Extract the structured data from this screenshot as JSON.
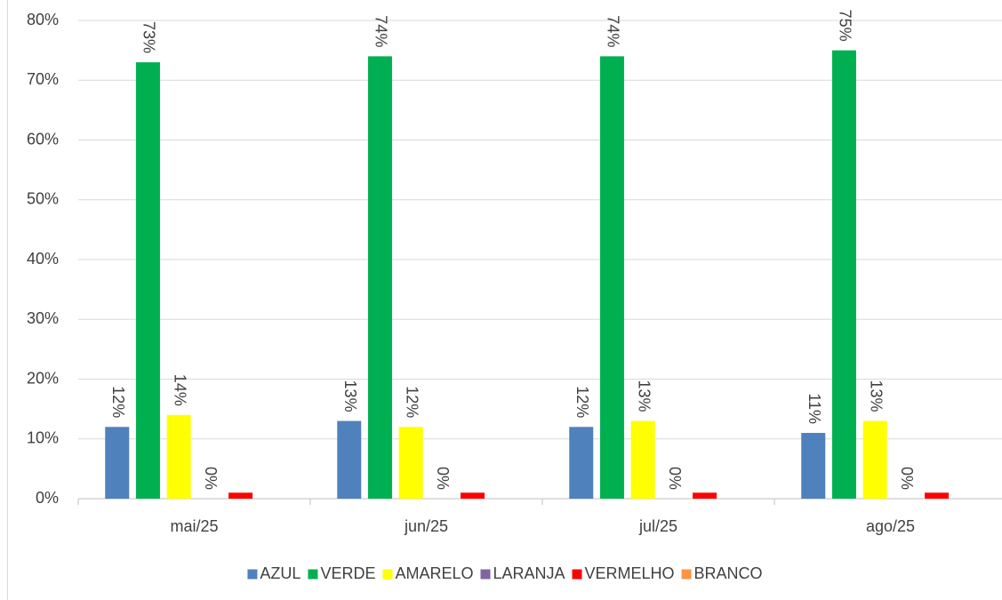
{
  "chart_data": {
    "type": "bar",
    "categories": [
      "mai/25",
      "jun/25",
      "jul/25",
      "ago/25"
    ],
    "series": [
      {
        "name": "AZUL",
        "color": "#4f81bd",
        "values": [
          12,
          13,
          12,
          11
        ],
        "value_labels": [
          "12%",
          "13%",
          "12%",
          "11%"
        ]
      },
      {
        "name": "VERDE",
        "color": "#00b050",
        "values": [
          73,
          74,
          74,
          75
        ],
        "value_labels": [
          "73%",
          "74%",
          "74%",
          "75%"
        ]
      },
      {
        "name": "AMARELO",
        "color": "#ffff00",
        "values": [
          14,
          12,
          13,
          13
        ],
        "value_labels": [
          "14%",
          "12%",
          "13%",
          "13%"
        ]
      },
      {
        "name": "LARANJA",
        "color": "#8064a2",
        "values": [
          0,
          0,
          0,
          0
        ],
        "value_labels": [
          "0%",
          "0%",
          "0%",
          "0%"
        ]
      },
      {
        "name": "VERMELHO",
        "color": "#ff0000",
        "values": [
          1,
          1,
          1,
          1
        ]
      },
      {
        "name": "BRANCO",
        "color": "#f79646",
        "values": [
          0,
          0,
          0,
          0
        ]
      }
    ],
    "ylim": [
      0,
      80
    ],
    "yticks": [
      {
        "value": 0,
        "label": "0%"
      },
      {
        "value": 10,
        "label": "10%"
      },
      {
        "value": 20,
        "label": "20%"
      },
      {
        "value": 30,
        "label": "30%"
      },
      {
        "value": 40,
        "label": "40%"
      },
      {
        "value": 50,
        "label": "50%"
      },
      {
        "value": 60,
        "label": "60%"
      },
      {
        "value": 70,
        "label": "70%"
      },
      {
        "value": 80,
        "label": "80%"
      }
    ],
    "grid": true,
    "legend": "bottom"
  }
}
